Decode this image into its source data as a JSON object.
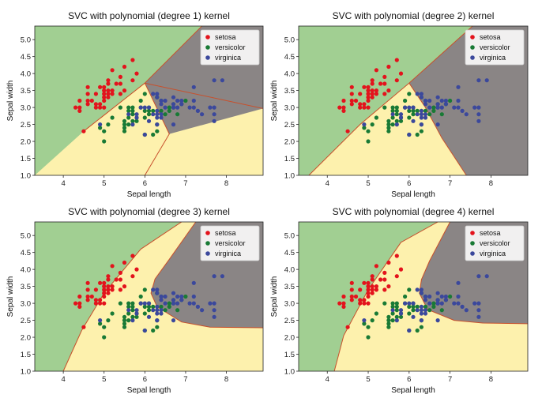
{
  "figure": {
    "background": "#ffffff"
  },
  "colors": {
    "region_setosa": "#a1cf92",
    "region_versicolor": "#fdf1ad",
    "region_virginica": "#8a8585",
    "boundary": "#c8502c",
    "setosa": "#e3131c",
    "versicolor": "#197a35",
    "virginica": "#3b489c"
  },
  "scatter_points": {
    "setosa": [
      [
        4.3,
        3.0
      ],
      [
        4.4,
        2.9
      ],
      [
        4.4,
        3.0
      ],
      [
        4.4,
        3.2
      ],
      [
        4.5,
        2.3
      ],
      [
        4.6,
        3.1
      ],
      [
        4.6,
        3.2
      ],
      [
        4.6,
        3.4
      ],
      [
        4.6,
        3.6
      ],
      [
        4.7,
        3.2
      ],
      [
        4.8,
        3.0
      ],
      [
        4.8,
        3.1
      ],
      [
        4.8,
        3.4
      ],
      [
        4.9,
        3.0
      ],
      [
        4.9,
        3.1
      ],
      [
        4.9,
        3.6
      ],
      [
        5.0,
        3.0
      ],
      [
        5.0,
        3.2
      ],
      [
        5.0,
        3.3
      ],
      [
        5.0,
        3.4
      ],
      [
        5.0,
        3.5
      ],
      [
        5.0,
        3.6
      ],
      [
        5.1,
        3.3
      ],
      [
        5.1,
        3.4
      ],
      [
        5.1,
        3.5
      ],
      [
        5.1,
        3.7
      ],
      [
        5.1,
        3.8
      ],
      [
        5.2,
        3.4
      ],
      [
        5.2,
        3.5
      ],
      [
        5.2,
        4.1
      ],
      [
        5.3,
        3.7
      ],
      [
        5.4,
        3.4
      ],
      [
        5.4,
        3.7
      ],
      [
        5.4,
        3.9
      ],
      [
        5.5,
        3.5
      ],
      [
        5.5,
        4.2
      ],
      [
        5.7,
        3.8
      ],
      [
        5.7,
        4.4
      ],
      [
        5.8,
        4.0
      ]
    ],
    "versicolor": [
      [
        4.9,
        2.4
      ],
      [
        5.0,
        2.0
      ],
      [
        5.0,
        2.3
      ],
      [
        5.1,
        2.5
      ],
      [
        5.2,
        2.7
      ],
      [
        5.4,
        3.0
      ],
      [
        5.5,
        2.3
      ],
      [
        5.5,
        2.4
      ],
      [
        5.5,
        2.5
      ],
      [
        5.5,
        2.6
      ],
      [
        5.6,
        2.5
      ],
      [
        5.6,
        2.7
      ],
      [
        5.6,
        2.9
      ],
      [
        5.6,
        3.0
      ],
      [
        5.7,
        2.6
      ],
      [
        5.7,
        2.8
      ],
      [
        5.7,
        2.9
      ],
      [
        5.7,
        3.0
      ],
      [
        5.8,
        2.6
      ],
      [
        5.8,
        2.7
      ],
      [
        5.9,
        3.0
      ],
      [
        5.9,
        3.2
      ],
      [
        6.0,
        2.2
      ],
      [
        6.0,
        2.7
      ],
      [
        6.0,
        2.9
      ],
      [
        6.0,
        3.4
      ],
      [
        6.1,
        2.8
      ],
      [
        6.1,
        2.9
      ],
      [
        6.1,
        3.0
      ],
      [
        6.2,
        2.2
      ],
      [
        6.2,
        2.9
      ],
      [
        6.3,
        2.3
      ],
      [
        6.3,
        2.5
      ],
      [
        6.3,
        3.3
      ],
      [
        6.4,
        2.9
      ],
      [
        6.4,
        3.2
      ],
      [
        6.5,
        2.8
      ],
      [
        6.6,
        2.9
      ],
      [
        6.6,
        3.0
      ],
      [
        6.7,
        3.0
      ],
      [
        6.7,
        3.1
      ],
      [
        6.8,
        2.8
      ],
      [
        6.9,
        3.1
      ],
      [
        7.0,
        3.2
      ]
    ],
    "virginica": [
      [
        4.9,
        2.5
      ],
      [
        5.6,
        2.8
      ],
      [
        5.7,
        2.5
      ],
      [
        5.8,
        2.7
      ],
      [
        5.8,
        2.8
      ],
      [
        5.9,
        3.0
      ],
      [
        6.0,
        2.2
      ],
      [
        6.0,
        3.0
      ],
      [
        6.1,
        2.6
      ],
      [
        6.1,
        3.0
      ],
      [
        6.2,
        2.8
      ],
      [
        6.2,
        3.4
      ],
      [
        6.3,
        2.5
      ],
      [
        6.3,
        2.7
      ],
      [
        6.3,
        2.8
      ],
      [
        6.3,
        2.9
      ],
      [
        6.3,
        3.3
      ],
      [
        6.3,
        3.4
      ],
      [
        6.4,
        2.7
      ],
      [
        6.4,
        2.8
      ],
      [
        6.4,
        3.1
      ],
      [
        6.4,
        3.2
      ],
      [
        6.5,
        3.0
      ],
      [
        6.5,
        3.2
      ],
      [
        6.7,
        2.5
      ],
      [
        6.7,
        3.0
      ],
      [
        6.7,
        3.1
      ],
      [
        6.7,
        3.3
      ],
      [
        6.8,
        3.0
      ],
      [
        6.8,
        3.2
      ],
      [
        6.9,
        3.1
      ],
      [
        6.9,
        3.2
      ],
      [
        7.1,
        3.0
      ],
      [
        7.2,
        3.0
      ],
      [
        7.2,
        3.2
      ],
      [
        7.2,
        3.6
      ],
      [
        7.3,
        2.9
      ],
      [
        7.4,
        2.8
      ],
      [
        7.6,
        3.0
      ],
      [
        7.7,
        2.6
      ],
      [
        7.7,
        2.8
      ],
      [
        7.7,
        3.0
      ],
      [
        7.7,
        3.8
      ],
      [
        7.9,
        3.8
      ]
    ]
  },
  "chart_data": [
    {
      "type": "scatter",
      "title": "SVC with polynomial (degree 1) kernel",
      "xlabel": "Sepal length",
      "ylabel": "Sepal width",
      "xlim": [
        3.3,
        8.9
      ],
      "ylim": [
        1.0,
        5.4
      ],
      "xticks": [
        "4",
        "5",
        "6",
        "7",
        "8"
      ],
      "yticks": [
        "1.0",
        "1.5",
        "2.0",
        "2.5",
        "3.0",
        "3.5",
        "4.0",
        "4.5",
        "5.0"
      ],
      "legend": {
        "position": "top-right",
        "entries": [
          "setosa",
          "versicolor",
          "virginica"
        ]
      },
      "decision_regions": {
        "classes": [
          "setosa",
          "versicolor",
          "virginica"
        ]
      },
      "grid": false
    },
    {
      "type": "scatter",
      "title": "SVC with polynomial (degree 2) kernel",
      "xlabel": "Sepal length",
      "ylabel": "Sepal width",
      "xlim": [
        3.3,
        8.9
      ],
      "ylim": [
        1.0,
        5.4
      ],
      "xticks": [
        "4",
        "5",
        "6",
        "7",
        "8"
      ],
      "yticks": [
        "1.0",
        "1.5",
        "2.0",
        "2.5",
        "3.0",
        "3.5",
        "4.0",
        "4.5",
        "5.0"
      ],
      "legend": {
        "position": "top-right",
        "entries": [
          "setosa",
          "versicolor",
          "virginica"
        ]
      },
      "decision_regions": {
        "classes": [
          "setosa",
          "versicolor",
          "virginica"
        ]
      },
      "grid": false
    },
    {
      "type": "scatter",
      "title": "SVC with polynomial (degree 3) kernel",
      "xlabel": "Sepal length",
      "ylabel": "Sepal width",
      "xlim": [
        3.3,
        8.9
      ],
      "ylim": [
        1.0,
        5.4
      ],
      "xticks": [
        "4",
        "5",
        "6",
        "7",
        "8"
      ],
      "yticks": [
        "1.0",
        "1.5",
        "2.0",
        "2.5",
        "3.0",
        "3.5",
        "4.0",
        "4.5",
        "5.0"
      ],
      "legend": {
        "position": "top-right",
        "entries": [
          "setosa",
          "versicolor",
          "virginica"
        ]
      },
      "decision_regions": {
        "classes": [
          "setosa",
          "versicolor",
          "virginica"
        ]
      },
      "grid": false
    },
    {
      "type": "scatter",
      "title": "SVC with polynomial (degree 4) kernel",
      "xlabel": "Sepal length",
      "ylabel": "Sepal width",
      "xlim": [
        3.3,
        8.9
      ],
      "ylim": [
        1.0,
        5.4
      ],
      "xticks": [
        "4",
        "5",
        "6",
        "7",
        "8"
      ],
      "yticks": [
        "1.0",
        "1.5",
        "2.0",
        "2.5",
        "3.0",
        "3.5",
        "4.0",
        "4.5",
        "5.0"
      ],
      "legend": {
        "position": "top-right",
        "entries": [
          "setosa",
          "versicolor",
          "virginica"
        ]
      },
      "decision_regions": {
        "classes": [
          "setosa",
          "versicolor",
          "virginica"
        ]
      },
      "grid": false
    }
  ]
}
